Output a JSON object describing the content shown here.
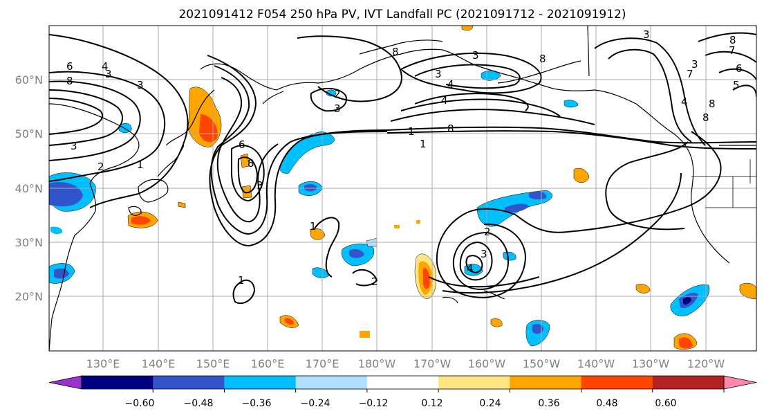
{
  "title": "2021091412 F054 250 hPa PV, IVT Landfall PC (2021091712 - 2021091912)",
  "map": {
    "lat_labels": [
      {
        "value": 60,
        "label": "60°N"
      },
      {
        "value": 50,
        "label": "50°N"
      },
      {
        "value": 40,
        "label": "40°N"
      },
      {
        "value": 30,
        "label": "30°N"
      },
      {
        "value": 20,
        "label": "20°N"
      }
    ],
    "lon_labels": [
      {
        "value": 130,
        "label": "130°E"
      },
      {
        "value": 140,
        "label": "140°E"
      },
      {
        "value": 150,
        "label": "150°E"
      },
      {
        "value": 160,
        "label": "160°E"
      },
      {
        "value": 170,
        "label": "170°E"
      },
      {
        "value": 180,
        "label": "180°W"
      },
      {
        "value": 190,
        "label": "170°W"
      },
      {
        "value": 200,
        "label": "160°W"
      },
      {
        "value": 210,
        "label": "150°W"
      },
      {
        "value": 220,
        "label": "140°W"
      },
      {
        "value": 230,
        "label": "130°W"
      },
      {
        "value": 240,
        "label": "120°W"
      }
    ],
    "extent": {
      "lon_min": 120,
      "lon_max": 245,
      "lat_min": 10,
      "lat_max": 70
    },
    "pv_contour_labels": [
      "6",
      "8",
      "4",
      "3",
      "3",
      "2",
      "1",
      "3",
      "2",
      "3",
      "8",
      "3",
      "4",
      "3",
      "8",
      "8",
      "8",
      "3",
      "1",
      "3",
      "7",
      "4",
      "8",
      "7",
      "8",
      "6",
      "8",
      "3",
      "6",
      "2",
      "4",
      "1",
      "2",
      "3",
      "4",
      "1",
      "5",
      "1"
    ]
  },
  "colorbar": {
    "ticks": [
      "−0.60",
      "−0.48",
      "−0.36",
      "−0.24",
      "−0.12",
      "0.12",
      "0.24",
      "0.36",
      "0.48",
      "0.60"
    ],
    "colors": [
      "#9933cc",
      "#000080",
      "#3355cc",
      "#00bfff",
      "#b0e0ff",
      "#ffffff",
      "#ffe680",
      "#ffa500",
      "#ff4500",
      "#b22222",
      "#ff88aa"
    ]
  }
}
